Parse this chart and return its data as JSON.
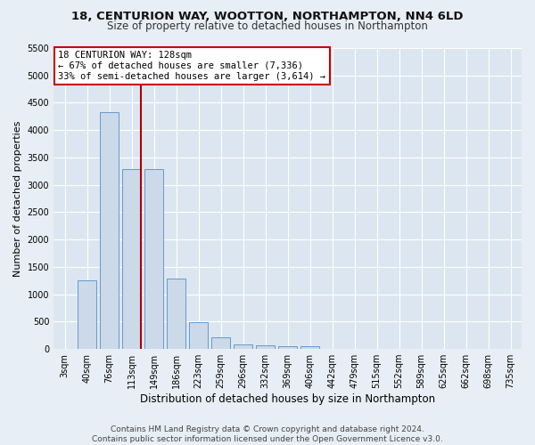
{
  "title_line1": "18, CENTURION WAY, WOOTTON, NORTHAMPTON, NN4 6LD",
  "title_line2": "Size of property relative to detached houses in Northampton",
  "xlabel": "Distribution of detached houses by size in Northampton",
  "ylabel": "Number of detached properties",
  "footnote": "Contains HM Land Registry data © Crown copyright and database right 2024.\nContains public sector information licensed under the Open Government Licence v3.0.",
  "bar_labels": [
    "3sqm",
    "40sqm",
    "76sqm",
    "113sqm",
    "149sqm",
    "186sqm",
    "223sqm",
    "259sqm",
    "296sqm",
    "332sqm",
    "369sqm",
    "406sqm",
    "442sqm",
    "479sqm",
    "515sqm",
    "552sqm",
    "589sqm",
    "625sqm",
    "662sqm",
    "698sqm",
    "735sqm"
  ],
  "bar_values": [
    0,
    1260,
    4330,
    3280,
    3280,
    1280,
    490,
    215,
    90,
    70,
    55,
    50,
    0,
    0,
    0,
    0,
    0,
    0,
    0,
    0,
    0
  ],
  "bar_color": "#ccd9e8",
  "bar_edgecolor": "#6699cc",
  "annotation_text": "18 CENTURION WAY: 128sqm\n← 67% of detached houses are smaller (7,336)\n33% of semi-detached houses are larger (3,614) →",
  "vline_x": 3.43,
  "vline_color": "#aa0000",
  "ylim": [
    0,
    5500
  ],
  "yticks": [
    0,
    500,
    1000,
    1500,
    2000,
    2500,
    3000,
    3500,
    4000,
    4500,
    5000,
    5500
  ],
  "fig_bg_color": "#e8eef5",
  "plot_bg_color": "#dce6f0",
  "grid_color": "#ffffff",
  "annotation_box_facecolor": "#ffffff",
  "annotation_box_edgecolor": "#cc0000",
  "title1_fontsize": 9.5,
  "title2_fontsize": 8.5,
  "ylabel_fontsize": 8,
  "xlabel_fontsize": 8.5,
  "tick_fontsize": 7,
  "footnote_fontsize": 6.5
}
